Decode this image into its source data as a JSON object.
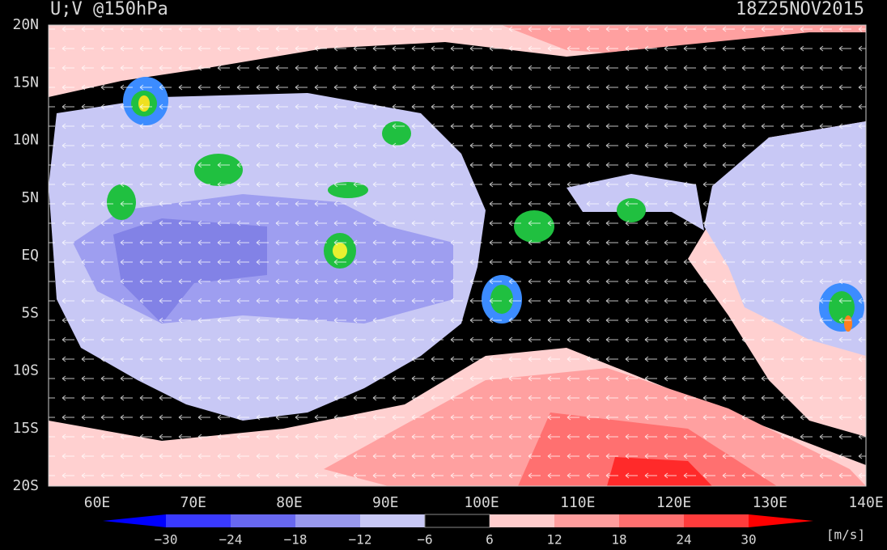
{
  "header": {
    "title": "U;V @150hPa",
    "timestamp": "18Z25NOV2015"
  },
  "map": {
    "lat_labels": [
      "20N",
      "15N",
      "10N",
      "5N",
      "EQ",
      "5S",
      "10S",
      "15S",
      "20S"
    ],
    "lon_labels": [
      "60E",
      "70E",
      "80E",
      "90E",
      "100E",
      "110E",
      "120E",
      "130E",
      "140E"
    ]
  },
  "colorbar": {
    "labels": [
      "−30",
      "−24",
      "−18",
      "−12",
      "−6",
      "6",
      "12",
      "18",
      "24",
      "30"
    ],
    "unit": "[m/s]"
  }
}
